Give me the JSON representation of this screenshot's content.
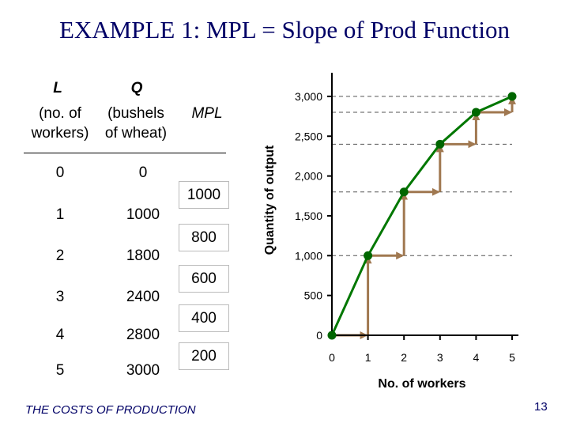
{
  "title": "EXAMPLE 1: MPL = Slope of Prod Function",
  "table": {
    "headers": {
      "L": {
        "symbol": "L",
        "line1": "(no. of",
        "line2": "workers)"
      },
      "Q": {
        "symbol": "Q",
        "line1": "(bushels",
        "line2": "of wheat)"
      },
      "MPL": {
        "symbol": "MPL"
      }
    },
    "rows": [
      {
        "L": "0",
        "Q": "0"
      },
      {
        "L": "1",
        "Q": "1000"
      },
      {
        "L": "2",
        "Q": "1800"
      },
      {
        "L": "3",
        "Q": "2400"
      },
      {
        "L": "4",
        "Q": "2800"
      },
      {
        "L": "5",
        "Q": "3000"
      }
    ],
    "mpl_values": [
      "1000",
      "800",
      "600",
      "400",
      "200"
    ]
  },
  "footer": "THE COSTS OF PRODUCTION",
  "page_number": "13",
  "chart_data": {
    "type": "line",
    "x": [
      0,
      1,
      2,
      3,
      4,
      5
    ],
    "y": [
      0,
      1000,
      1800,
      2400,
      2800,
      3000
    ],
    "xlabel": "No. of workers",
    "ylabel": "Quantity of output",
    "xlim": [
      0,
      5
    ],
    "ylim": [
      0,
      3000
    ],
    "x_tick_labels": [
      "0",
      "1",
      "2",
      "3",
      "4",
      "5"
    ],
    "y_ticks": [
      0,
      500,
      1000,
      1500,
      2000,
      2500,
      3000
    ],
    "y_tick_labels": [
      "0",
      "500",
      "1,000",
      "1,500",
      "2,000",
      "2,500",
      "3,000"
    ],
    "guide_lines": "dashed horizontal lines at each output level",
    "step_arrows": "run and rise arrows between consecutive points",
    "colors": {
      "line": "#007700",
      "marker": "#006600",
      "arrow": "#a07850",
      "axis": "#000000"
    }
  }
}
